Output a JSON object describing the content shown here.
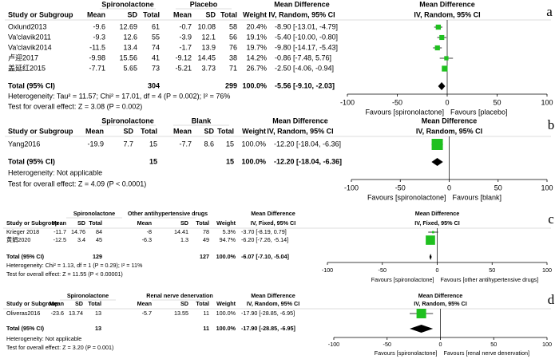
{
  "panels": [
    {
      "letter": "a",
      "group1": "Spironolactone",
      "group2": "Placebo",
      "md_head1": "Mean Difference",
      "md_head2": "IV, Random, 95% CI",
      "plot_head1": "Mean Difference",
      "plot_head2": "IV, Random, 95% CI",
      "columns": [
        "Study or Subgroup",
        "Mean",
        "SD",
        "Total",
        "Mean",
        "SD",
        "Total",
        "Weight"
      ],
      "rows": [
        {
          "cells": [
            "Oxlund2013",
            "-9.6",
            "12.69",
            "61",
            "-0.7",
            "10.08",
            "58",
            "20.4%"
          ],
          "ci_label": "-8.90 [-13.01, -4.79]",
          "md": -8.9,
          "lo": -13.01,
          "hi": -4.79,
          "weight": 20.4
        },
        {
          "cells": [
            "Va'clavik2011",
            "-9.3",
            "12.6",
            "55",
            "-3.9",
            "12.1",
            "56",
            "19.1%"
          ],
          "ci_label": "-5.40 [-10.00, -0.80]",
          "md": -5.4,
          "lo": -10.0,
          "hi": -0.8,
          "weight": 19.1
        },
        {
          "cells": [
            "Va'clavik2014",
            "-11.5",
            "13.4",
            "74",
            "-1.7",
            "13.9",
            "76",
            "19.7%"
          ],
          "ci_label": "-9.80 [-14.17, -5.43]",
          "md": -9.8,
          "lo": -14.17,
          "hi": -5.43,
          "weight": 19.7
        },
        {
          "cells": [
            "卢迎2017",
            "-9.98",
            "15.56",
            "41",
            "-9.12",
            "14.45",
            "38",
            "14.2%"
          ],
          "ci_label": "-0.86 [-7.48, 5.76]",
          "md": -0.86,
          "lo": -7.48,
          "hi": 5.76,
          "weight": 14.2
        },
        {
          "cells": [
            "盖延红2015",
            "-7.71",
            "5.65",
            "73",
            "-5.21",
            "3.73",
            "71",
            "26.7%"
          ],
          "ci_label": "-2.50 [-4.06, -0.94]",
          "md": -2.5,
          "lo": -4.06,
          "hi": -0.94,
          "weight": 26.7
        }
      ],
      "total": {
        "label": "Total (95% CI)",
        "total1": "304",
        "total2": "299",
        "weight": "100.0%",
        "ci_label": "-5.56 [-9.10, -2.03]",
        "md": -5.56,
        "lo": -9.1,
        "hi": -2.03
      },
      "heterogeneity": "Heterogeneity: Tau² = 11.57; Chi² = 17.01, df = 4 (P = 0.002); I² = 76%",
      "test": "Test for overall effect: Z = 3.08 (P = 0.002)",
      "xlim": [
        -100,
        100
      ],
      "xticks": [
        -100,
        -50,
        0,
        50,
        100
      ],
      "favours_left": "Favours [spironolactone]",
      "favours_right": "Favours [placebo]"
    },
    {
      "letter": "b",
      "group1": "Spironolactone",
      "group2": "Blank",
      "md_head1": "Mean Difference",
      "md_head2": "IV, Random, 95% CI",
      "plot_head1": "Mean Difference",
      "plot_head2": "IV, Random, 95% CI",
      "columns": [
        "Study or Subgroup",
        "Mean",
        "SD",
        "Total",
        "Mean",
        "SD",
        "Total",
        "Weight"
      ],
      "rows": [
        {
          "cells": [
            "Yang2016",
            "-19.9",
            "7.7",
            "15",
            "-7.7",
            "8.6",
            "15",
            "100.0%"
          ],
          "ci_label": "-12.20 [-18.04, -6.36]",
          "md": -12.2,
          "lo": -18.04,
          "hi": -6.36,
          "weight": 100.0
        }
      ],
      "total": {
        "label": "Total (95% CI)",
        "total1": "15",
        "total2": "15",
        "weight": "100.0%",
        "ci_label": "-12.20 [-18.04, -6.36]",
        "md": -12.2,
        "lo": -18.04,
        "hi": -6.36
      },
      "heterogeneity": "Heterogeneity: Not applicable",
      "test": "Test for overall effect: Z = 4.09 (P < 0.0001)",
      "xlim": [
        -100,
        100
      ],
      "xticks": [
        -100,
        -50,
        0,
        50,
        100
      ],
      "favours_left": "Favours [spironolactone]",
      "favours_right": "Favours [blank]"
    },
    {
      "letter": "c",
      "group1": "Spironolactone",
      "group2": "Other antihypertensive drugs",
      "md_head1": "Mean Difference",
      "md_head2": "IV, Fixed, 95% CI",
      "plot_head1": "Mean Difference",
      "plot_head2": "IV, Fixed, 95% CI",
      "columns": [
        "Study or Subgroup",
        "Mean",
        "SD",
        "Total",
        "Mean",
        "SD",
        "Total",
        "Weight"
      ],
      "rows": [
        {
          "cells": [
            "Krieger 2018",
            "-11.7",
            "14.76",
            "84",
            "-8",
            "14.41",
            "78",
            "5.3%"
          ],
          "ci_label": "-3.70 [-8.19, 0.79]",
          "md": -3.7,
          "lo": -8.19,
          "hi": 0.79,
          "weight": 5.3
        },
        {
          "cells": [
            "黄娟2020",
            "-12.5",
            "3.4",
            "45",
            "-6.3",
            "1.3",
            "49",
            "94.7%"
          ],
          "ci_label": "-6.20 [-7.26, -5.14]",
          "md": -6.2,
          "lo": -7.26,
          "hi": -5.14,
          "weight": 94.7
        }
      ],
      "total": {
        "label": "Total (95% CI)",
        "total1": "129",
        "total2": "127",
        "weight": "100.0%",
        "ci_label": "-6.07 [-7.10, -5.04]",
        "md": -6.07,
        "lo": -7.1,
        "hi": -5.04
      },
      "heterogeneity": "Heterogeneity: Chi² = 1.13, df = 1 (P = 0.29); I² = 11%",
      "test": "Test for overall effect: Z = 11.55 (P < 0.00001)",
      "xlim": [
        -100,
        100
      ],
      "xticks": [
        -100,
        -50,
        0,
        50,
        100
      ],
      "favours_left": "Favours [spironolactone]",
      "favours_right": "Favours [other antihypertensive drugs]"
    },
    {
      "letter": "d",
      "group1": "Spironolactone",
      "group2": "Renal nerve denervation",
      "md_head1": "Mean Difference",
      "md_head2": "IV, Random, 95% CI",
      "plot_head1": "Mean Difference",
      "plot_head2": "IV, Random, 95% CI",
      "columns": [
        "Study or Subgroup",
        "Mean",
        "SD",
        "Total",
        "Mean",
        "SD",
        "Total",
        "Weight"
      ],
      "rows": [
        {
          "cells": [
            "Oliveras2016",
            "-23.6",
            "13.74",
            "13",
            "-5.7",
            "13.55",
            "11",
            "100.0%"
          ],
          "ci_label": "-17.90 [-28.85, -6.95]",
          "md": -17.9,
          "lo": -28.85,
          "hi": -6.95,
          "weight": 100.0
        }
      ],
      "total": {
        "label": "Total (95% CI)",
        "total1": "13",
        "total2": "11",
        "weight": "100.0%",
        "ci_label": "-17.90 [-28.85, -6.95]",
        "md": -17.9,
        "lo": -28.85,
        "hi": -6.95
      },
      "heterogeneity": "Heterogeneity: Not applicable",
      "test": "Test for overall effect: Z = 3.20 (P = 0.001)",
      "xlim": [
        -100,
        100
      ],
      "xticks": [
        -100,
        -50,
        0,
        50,
        100
      ],
      "favours_left": "Favours [spironolactone]",
      "favours_right": "Favours [renal nerve denervation]"
    }
  ]
}
